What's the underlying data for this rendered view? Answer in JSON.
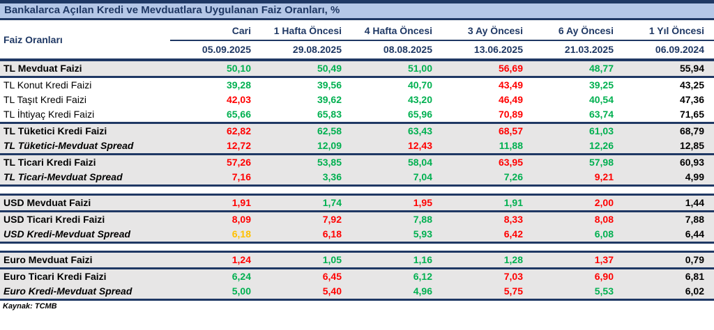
{
  "theme": {
    "navy": "#1F3864",
    "title_bg": "#B4C7E7",
    "row_shade": "#E7E6E6",
    "green": "#00B050",
    "red": "#FF0000",
    "orange": "#FFC000",
    "black": "#000000"
  },
  "chart_data": {
    "type": "table",
    "title": "Bankalarca Açılan Kredi ve Mevduatlara Uygulanan Faiz Oranları, %",
    "row_header": "Faiz Oranları",
    "columns": [
      {
        "label": "Cari",
        "date": "05.09.2025"
      },
      {
        "label": "1 Hafta Öncesi",
        "date": "29.08.2025"
      },
      {
        "label": "4 Hafta Öncesi",
        "date": "08.08.2025"
      },
      {
        "label": "3 Ay Öncesi",
        "date": "13.06.2025"
      },
      {
        "label": "6 Ay Öncesi",
        "date": "21.03.2025"
      },
      {
        "label": "1 Yıl Öncesi",
        "date": "06.09.2024"
      }
    ],
    "rows": [
      {
        "label": "TL Mevduat Faizi",
        "style": "bold",
        "shaded": true,
        "section_end": true,
        "values": [
          "50,10",
          "50,49",
          "51,00",
          "56,69",
          "48,77",
          "55,94"
        ],
        "colors": [
          "green",
          "green",
          "green",
          "red",
          "green",
          "black"
        ]
      },
      {
        "label": "TL Konut Kredi Faizi",
        "style": "regular",
        "shaded": false,
        "section_end": false,
        "values": [
          "39,28",
          "39,56",
          "40,70",
          "43,49",
          "39,25",
          "43,25"
        ],
        "colors": [
          "green",
          "green",
          "green",
          "red",
          "green",
          "black"
        ]
      },
      {
        "label": "TL Taşıt Kredi Faizi",
        "style": "regular",
        "shaded": false,
        "section_end": false,
        "values": [
          "42,03",
          "39,62",
          "43,20",
          "46,49",
          "40,54",
          "47,36"
        ],
        "colors": [
          "red",
          "green",
          "green",
          "red",
          "green",
          "black"
        ]
      },
      {
        "label": "TL İhtiyaç Kredi Faizi",
        "style": "regular",
        "shaded": false,
        "section_end": true,
        "values": [
          "65,66",
          "65,83",
          "65,96",
          "70,89",
          "63,74",
          "71,65"
        ],
        "colors": [
          "green",
          "green",
          "green",
          "red",
          "green",
          "black"
        ]
      },
      {
        "label": "TL Tüketici Kredi Faizi",
        "style": "bold",
        "shaded": true,
        "section_end": false,
        "values": [
          "62,82",
          "62,58",
          "63,43",
          "68,57",
          "61,03",
          "68,79"
        ],
        "colors": [
          "red",
          "green",
          "green",
          "red",
          "green",
          "black"
        ]
      },
      {
        "label": "TL Tüketici-Mevduat Spread",
        "style": "bold-italic",
        "shaded": true,
        "section_end": true,
        "values": [
          "12,72",
          "12,09",
          "12,43",
          "11,88",
          "12,26",
          "12,85"
        ],
        "colors": [
          "red",
          "green",
          "red",
          "green",
          "green",
          "black"
        ]
      },
      {
        "label": "TL Ticari Kredi Faizi",
        "style": "bold",
        "shaded": true,
        "section_end": false,
        "values": [
          "57,26",
          "53,85",
          "58,04",
          "63,95",
          "57,98",
          "60,93"
        ],
        "colors": [
          "red",
          "green",
          "green",
          "red",
          "green",
          "black"
        ]
      },
      {
        "label": "TL Ticari-Mevduat Spread",
        "style": "bold-italic",
        "shaded": true,
        "section_end": true,
        "values": [
          "7,16",
          "3,36",
          "7,04",
          "7,26",
          "9,21",
          "4,99"
        ],
        "colors": [
          "red",
          "green",
          "green",
          "green",
          "red",
          "black"
        ]
      },
      {
        "type": "gap",
        "section_end": true
      },
      {
        "label": "USD Mevduat Faizi",
        "style": "bold",
        "shaded": true,
        "section_end": true,
        "values": [
          "1,91",
          "1,74",
          "1,95",
          "1,91",
          "2,00",
          "1,44"
        ],
        "colors": [
          "red",
          "green",
          "red",
          "green",
          "red",
          "black"
        ]
      },
      {
        "label": "USD Ticari Kredi Faizi",
        "style": "bold",
        "shaded": true,
        "section_end": false,
        "values": [
          "8,09",
          "7,92",
          "7,88",
          "8,33",
          "8,08",
          "7,88"
        ],
        "colors": [
          "red",
          "red",
          "green",
          "red",
          "red",
          "black"
        ]
      },
      {
        "label": "USD Kredi-Mevduat Spread",
        "style": "bold-italic",
        "shaded": true,
        "section_end": true,
        "values": [
          "6,18",
          "6,18",
          "5,93",
          "6,42",
          "6,08",
          "6,44"
        ],
        "colors": [
          "orange",
          "red",
          "green",
          "red",
          "green",
          "black"
        ]
      },
      {
        "type": "gap",
        "section_end": true
      },
      {
        "label": "Euro Mevduat Faizi",
        "style": "bold",
        "shaded": true,
        "section_end": true,
        "values": [
          "1,24",
          "1,05",
          "1,16",
          "1,28",
          "1,37",
          "0,79"
        ],
        "colors": [
          "red",
          "green",
          "green",
          "green",
          "red",
          "black"
        ]
      },
      {
        "label": "Euro Ticari Kredi Faizi",
        "style": "bold",
        "shaded": true,
        "section_end": false,
        "values": [
          "6,24",
          "6,45",
          "6,12",
          "7,03",
          "6,90",
          "6,81"
        ],
        "colors": [
          "green",
          "red",
          "green",
          "red",
          "red",
          "black"
        ]
      },
      {
        "label": "Euro Kredi-Mevduat Spread",
        "style": "bold-italic",
        "shaded": true,
        "section_end": true,
        "values": [
          "5,00",
          "5,40",
          "4,96",
          "5,75",
          "5,53",
          "6,02"
        ],
        "colors": [
          "green",
          "red",
          "green",
          "red",
          "green",
          "black"
        ]
      }
    ],
    "source": "Kaynak: TCMB"
  }
}
